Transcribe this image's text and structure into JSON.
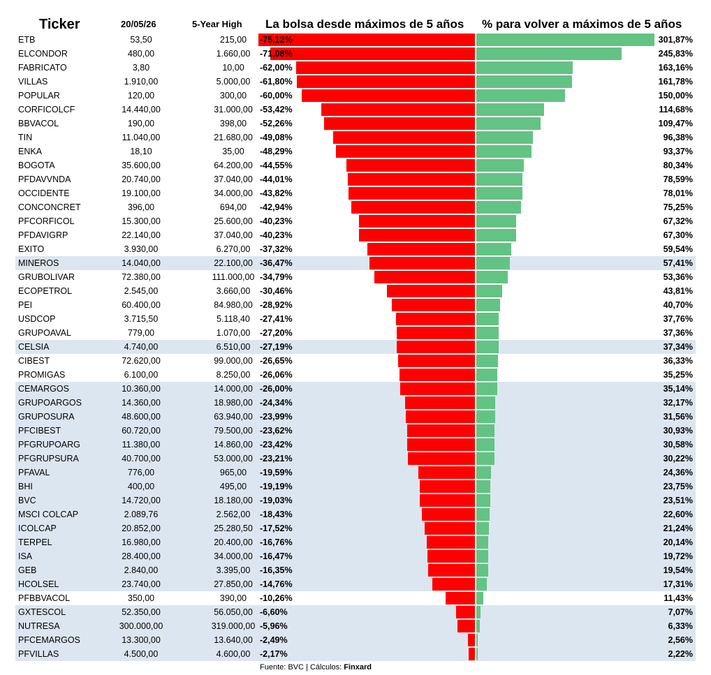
{
  "headers": {
    "ticker": "Ticker",
    "date": "20/05/26",
    "high": "5-Year High",
    "left_title": "La bolsa desde máximos de 5 años",
    "right_title": "% para volver a máximos de 5 años"
  },
  "source": {
    "prefix": "Fuente: BVC | Cálculos: ",
    "brand": "Finxard"
  },
  "colors": {
    "negative": "#ff0000",
    "positive": "#63c384",
    "highlight_row": "#dce6f0"
  },
  "chart_data": {
    "type": "bar",
    "orientation": "horizontal",
    "categories": [
      "ETB",
      "ELCONDOR",
      "FABRICATO",
      "VILLAS",
      "POPULAR",
      "CORFICOLCF",
      "BBVACOL",
      "TIN",
      "ENKA",
      "BOGOTA",
      "PFDAVVNDA",
      "OCCIDENTE",
      "CONCONCRET",
      "PFCORFICOL",
      "PFDAVIGRP",
      "EXITO",
      "MINEROS",
      "GRUBOLIVAR",
      "ECOPETROL",
      "PEI",
      "USDCOP",
      "GRUPOAVAL",
      "CELSIA",
      "CIBEST",
      "PROMIGAS",
      "CEMARGOS",
      "GRUPOARGOS",
      "GRUPOSURA",
      "PFCIBEST",
      "PFGRUPOARG",
      "PFGRUPSURA",
      "PFAVAL",
      "BHI",
      "BVC",
      "MSCI COLCAP",
      "ICOLCAP",
      "TERPEL",
      "ISA",
      "GEB",
      "HCOLSEL",
      "PFBBVACOL",
      "GXTESCOL",
      "NUTRESA",
      "PFCEMARGOS",
      "PFVILLAS"
    ],
    "series": [
      {
        "name": "La bolsa desde máximos de 5 años",
        "values": [
          -75.12,
          -71.08,
          -62.0,
          -61.8,
          -60.0,
          -53.42,
          -52.26,
          -49.08,
          -48.29,
          -44.55,
          -44.01,
          -43.82,
          -42.94,
          -40.23,
          -40.23,
          -37.32,
          -36.47,
          -34.79,
          -30.46,
          -28.92,
          -27.41,
          -27.2,
          -27.19,
          -26.65,
          -26.06,
          -26.0,
          -24.34,
          -23.99,
          -23.62,
          -23.42,
          -23.21,
          -19.59,
          -19.19,
          -19.03,
          -18.43,
          -17.52,
          -16.76,
          -16.47,
          -16.35,
          -14.76,
          -10.26,
          -6.6,
          -5.96,
          -2.49,
          -2.17
        ],
        "labels": [
          "-75,12%",
          "-71,08%",
          "-62,00%",
          "-61,80%",
          "-60,00%",
          "-53,42%",
          "-52,26%",
          "-49,08%",
          "-48,29%",
          "-44,55%",
          "-44,01%",
          "-43,82%",
          "-42,94%",
          "-40,23%",
          "-40,23%",
          "-37,32%",
          "-36,47%",
          "-34,79%",
          "-30,46%",
          "-28,92%",
          "-27,41%",
          "-27,20%",
          "-27,19%",
          "-26,65%",
          "-26,06%",
          "-26,00%",
          "-24,34%",
          "-23,99%",
          "-23,62%",
          "-23,42%",
          "-23,21%",
          "-19,59%",
          "-19,19%",
          "-19,03%",
          "-18,43%",
          "-17,52%",
          "-16,76%",
          "-16,47%",
          "-16,35%",
          "-14,76%",
          "-10,26%",
          "-6,60%",
          "-5,96%",
          "-2,49%",
          "-2,17%"
        ]
      },
      {
        "name": "% para volver a máximos de 5 años",
        "values": [
          301.87,
          245.83,
          163.16,
          161.78,
          150.0,
          114.68,
          109.47,
          96.38,
          93.37,
          80.34,
          78.59,
          78.01,
          75.25,
          67.32,
          67.3,
          59.54,
          57.41,
          53.36,
          43.81,
          40.7,
          37.76,
          37.36,
          37.34,
          36.33,
          35.25,
          35.14,
          32.17,
          31.56,
          30.93,
          30.58,
          30.22,
          24.36,
          23.75,
          23.51,
          22.6,
          21.24,
          20.14,
          19.72,
          19.54,
          17.31,
          11.43,
          7.07,
          6.33,
          2.56,
          2.22
        ],
        "labels": [
          "301,87%",
          "245,83%",
          "163,16%",
          "161,78%",
          "150,00%",
          "114,68%",
          "109,47%",
          "96,38%",
          "93,37%",
          "80,34%",
          "78,59%",
          "78,01%",
          "75,25%",
          "67,32%",
          "67,30%",
          "59,54%",
          "57,41%",
          "53,36%",
          "43,81%",
          "40,70%",
          "37,76%",
          "37,36%",
          "37,34%",
          "36,33%",
          "35,25%",
          "35,14%",
          "32,17%",
          "31,56%",
          "30,93%",
          "30,58%",
          "30,22%",
          "24,36%",
          "23,75%",
          "23,51%",
          "22,60%",
          "21,24%",
          "20,14%",
          "19,72%",
          "19,54%",
          "17,31%",
          "11,43%",
          "7,07%",
          "6,33%",
          "2,56%",
          "2,22%"
        ]
      }
    ],
    "price": [
      "53,50",
      "480,00",
      "3,80",
      "1.910,00",
      "120,00",
      "14.440,00",
      "190,00",
      "11.040,00",
      "18,10",
      "35.600,00",
      "20.740,00",
      "19.100,00",
      "396,00",
      "15.300,00",
      "22.140,00",
      "3.930,00",
      "14.040,00",
      "72.380,00",
      "2.545,00",
      "60.400,00",
      "3.715,50",
      "779,00",
      "4.740,00",
      "72.620,00",
      "6.100,00",
      "10.360,00",
      "14.360,00",
      "48.600,00",
      "60.720,00",
      "11.380,00",
      "40.700,00",
      "776,00",
      "400,00",
      "14.720,00",
      "2.089,76",
      "20.852,00",
      "16.980,00",
      "28.400,00",
      "2.840,00",
      "23.740,00",
      "350,00",
      "52.350,00",
      "300.000,00",
      "13.300,00",
      "4.500,00"
    ],
    "five_year_high": [
      "215,00",
      "1.660,00",
      "10,00",
      "5.000,00",
      "300,00",
      "31.000,00",
      "398,00",
      "21.680,00",
      "35,00",
      "64.200,00",
      "37.040,00",
      "34.000,00",
      "694,00",
      "25.600,00",
      "37.040,00",
      "6.270,00",
      "22.100,00",
      "111.000,00",
      "3.660,00",
      "84.980,00",
      "5.118,40",
      "1.070,00",
      "6.510,00",
      "99.000,00",
      "8.250,00",
      "14.000,00",
      "18.980,00",
      "63.940,00",
      "79.500,00",
      "14.860,00",
      "53.000,00",
      "965,00",
      "495,00",
      "18.180,00",
      "2.562,00",
      "25.280,50",
      "20.400,00",
      "34.000,00",
      "3.395,00",
      "27.850,00",
      "390,00",
      "56.050,00",
      "319.000,00",
      "13.640,00",
      "4.600,00"
    ],
    "highlighted": [
      false,
      false,
      false,
      false,
      false,
      false,
      false,
      false,
      false,
      false,
      false,
      false,
      false,
      false,
      false,
      false,
      true,
      false,
      false,
      false,
      false,
      false,
      true,
      false,
      false,
      true,
      true,
      true,
      true,
      true,
      true,
      true,
      true,
      true,
      true,
      true,
      true,
      true,
      true,
      true,
      false,
      true,
      true,
      true,
      true
    ],
    "xlim_left": [
      -80,
      0
    ],
    "xlim_right": [
      0,
      310
    ]
  }
}
